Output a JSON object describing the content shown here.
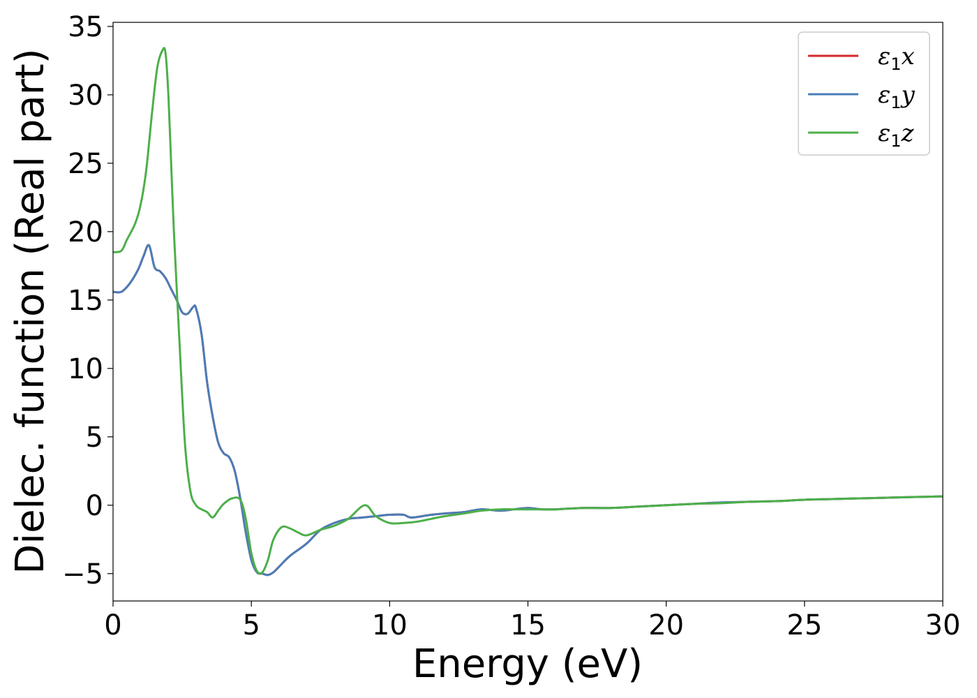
{
  "chart_data": {
    "type": "line",
    "xlabel": "Energy (eV)",
    "ylabel": "Dielec. function (Real part)",
    "xlim": [
      0,
      30
    ],
    "ylim": [
      -7,
      35.3
    ],
    "xticks": [
      0,
      5,
      10,
      15,
      20,
      25,
      30
    ],
    "xtick_labels": [
      "0",
      "5",
      "10",
      "15",
      "20",
      "25",
      "30"
    ],
    "yticks": [
      -5,
      0,
      5,
      10,
      15,
      20,
      25,
      30,
      35
    ],
    "ytick_labels": [
      "−5",
      "0",
      "5",
      "10",
      "15",
      "20",
      "25",
      "30",
      "35"
    ],
    "grid": false,
    "legend_position": "top-right",
    "series": [
      {
        "name": "ε1x",
        "name_symbol": "ε",
        "name_sub": "1",
        "name_var": "x",
        "color": "#d62728",
        "x": [
          0,
          0.3,
          0.6,
          0.9,
          1.1,
          1.3,
          1.5,
          1.7,
          1.9,
          2.1,
          2.3,
          2.5,
          2.7,
          2.9,
          3.0,
          3.2,
          3.4,
          3.6,
          3.8,
          4.0,
          4.2,
          4.4,
          4.6,
          4.8,
          5.0,
          5.2,
          5.4,
          5.6,
          5.8,
          6.0,
          6.4,
          7.0,
          7.5,
          8.0,
          8.5,
          9.0,
          9.5,
          10.0,
          10.5,
          10.8,
          11.5,
          12.0,
          12.7,
          13.3,
          14.0,
          14.5,
          15.0,
          15.5,
          16.0,
          17.0,
          18.0,
          19.0,
          20.0,
          21.0,
          22.0,
          23.0,
          24.0,
          25.0,
          26.0,
          27.0,
          28.0,
          29.0,
          30.0
        ],
        "y": [
          15.6,
          15.6,
          16.2,
          17.2,
          18.2,
          19.0,
          17.4,
          17.1,
          16.6,
          15.8,
          15.0,
          14.1,
          14.0,
          14.5,
          14.4,
          12.5,
          9.0,
          6.5,
          4.6,
          3.8,
          3.5,
          2.5,
          0.5,
          -2.0,
          -4.0,
          -4.9,
          -5.0,
          -5.1,
          -4.9,
          -4.5,
          -3.7,
          -2.8,
          -1.8,
          -1.3,
          -1.0,
          -0.9,
          -0.8,
          -0.7,
          -0.7,
          -0.9,
          -0.7,
          -0.6,
          -0.5,
          -0.3,
          -0.4,
          -0.3,
          -0.2,
          -0.3,
          -0.3,
          -0.2,
          -0.2,
          -0.1,
          0.0,
          0.1,
          0.2,
          0.25,
          0.3,
          0.4,
          0.45,
          0.5,
          0.55,
          0.6,
          0.65
        ]
      },
      {
        "name": "ε1y",
        "name_symbol": "ε",
        "name_sub": "1",
        "name_var": "y",
        "color": "#4a7db8",
        "x": [
          0,
          0.3,
          0.6,
          0.9,
          1.1,
          1.3,
          1.5,
          1.7,
          1.9,
          2.1,
          2.3,
          2.5,
          2.7,
          2.9,
          3.0,
          3.2,
          3.4,
          3.6,
          3.8,
          4.0,
          4.2,
          4.4,
          4.6,
          4.8,
          5.0,
          5.2,
          5.4,
          5.6,
          5.8,
          6.0,
          6.4,
          7.0,
          7.5,
          8.0,
          8.5,
          9.0,
          9.5,
          10.0,
          10.5,
          10.8,
          11.5,
          12.0,
          12.7,
          13.3,
          14.0,
          14.5,
          15.0,
          15.5,
          16.0,
          17.0,
          18.0,
          19.0,
          20.0,
          21.0,
          22.0,
          23.0,
          24.0,
          25.0,
          26.0,
          27.0,
          28.0,
          29.0,
          30.0
        ],
        "y": [
          15.6,
          15.6,
          16.2,
          17.2,
          18.2,
          19.0,
          17.4,
          17.1,
          16.6,
          15.8,
          15.0,
          14.1,
          14.0,
          14.5,
          14.4,
          12.5,
          9.0,
          6.5,
          4.6,
          3.8,
          3.5,
          2.5,
          0.5,
          -2.0,
          -4.0,
          -4.9,
          -5.0,
          -5.1,
          -4.9,
          -4.5,
          -3.7,
          -2.8,
          -1.8,
          -1.3,
          -1.0,
          -0.9,
          -0.8,
          -0.7,
          -0.7,
          -0.9,
          -0.7,
          -0.6,
          -0.5,
          -0.3,
          -0.4,
          -0.3,
          -0.2,
          -0.3,
          -0.3,
          -0.2,
          -0.2,
          -0.1,
          0.0,
          0.1,
          0.2,
          0.25,
          0.3,
          0.4,
          0.45,
          0.5,
          0.55,
          0.6,
          0.65
        ]
      },
      {
        "name": "ε1z",
        "name_symbol": "ε",
        "name_sub": "1",
        "name_var": "z",
        "color": "#4daf4a",
        "x": [
          0,
          0.3,
          0.5,
          0.8,
          1.0,
          1.2,
          1.4,
          1.6,
          1.8,
          1.9,
          2.0,
          2.1,
          2.2,
          2.4,
          2.6,
          2.8,
          3.0,
          3.2,
          3.4,
          3.6,
          3.8,
          4.0,
          4.3,
          4.6,
          4.8,
          5.0,
          5.2,
          5.4,
          5.6,
          5.8,
          6.1,
          6.4,
          6.7,
          7.0,
          7.5,
          8.0,
          8.5,
          9.1,
          9.5,
          10.0,
          10.5,
          11.0,
          11.5,
          12.0,
          12.7,
          13.3,
          14.0,
          14.5,
          15.0,
          15.5,
          16.0,
          17.0,
          18.0,
          19.0,
          20.0,
          21.0,
          22.0,
          23.0,
          24.0,
          25.0,
          26.0,
          27.0,
          28.0,
          29.0,
          30.0
        ],
        "y": [
          18.5,
          18.6,
          19.4,
          20.6,
          22.0,
          24.5,
          28.5,
          32.0,
          33.3,
          33.0,
          30.0,
          25.0,
          20.0,
          12.0,
          4.5,
          1.0,
          0.0,
          -0.3,
          -0.5,
          -0.9,
          -0.4,
          0.1,
          0.5,
          0.4,
          -1.0,
          -3.5,
          -4.8,
          -4.9,
          -4.0,
          -2.5,
          -1.6,
          -1.7,
          -2.0,
          -2.2,
          -1.8,
          -1.5,
          -1.0,
          0.0,
          -0.8,
          -1.3,
          -1.3,
          -1.2,
          -1.0,
          -0.8,
          -0.6,
          -0.4,
          -0.3,
          -0.3,
          -0.3,
          -0.3,
          -0.3,
          -0.2,
          -0.2,
          -0.1,
          0.0,
          0.1,
          0.15,
          0.25,
          0.3,
          0.4,
          0.45,
          0.5,
          0.55,
          0.6,
          0.65
        ]
      }
    ]
  }
}
